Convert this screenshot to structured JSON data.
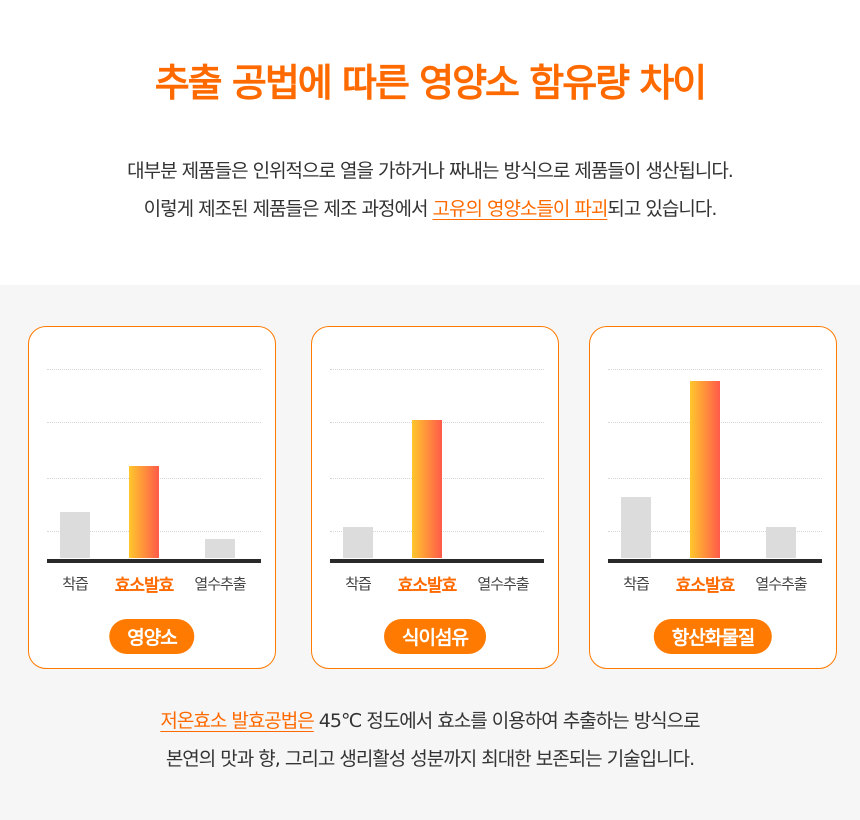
{
  "title": "추출 공법에 따른 영양소 함유량 차이",
  "intro": {
    "line1": "대부분 제품들은 인위적으로 열을 가하거나 짜내는 방식으로 제품들이 생산됩니다.",
    "line2_pre": "이렇게 제조된 제품들은 제조 과정에서 ",
    "line2_hl": "고유의 영양소들이 파괴",
    "line2_post": "되고 있습니다."
  },
  "colors": {
    "accent": "#ff6a00",
    "bar_gray": "#dcdcdc",
    "gradient_start": "#ffc72c",
    "gradient_end": "#ff5a4a"
  },
  "chart_data": [
    {
      "type": "bar",
      "title": "영양소",
      "categories": [
        "착즙",
        "효소발효",
        "열수추출"
      ],
      "values": [
        24,
        48,
        10
      ],
      "ylim": [
        0,
        100
      ]
    },
    {
      "type": "bar",
      "title": "식이섬유",
      "categories": [
        "착즙",
        "효소발효",
        "열수추출"
      ],
      "values": [
        16,
        72,
        0
      ],
      "ylim": [
        0,
        100
      ]
    },
    {
      "type": "bar",
      "title": "항산화물질",
      "categories": [
        "착즙",
        "효소발효",
        "열수추출"
      ],
      "values": [
        32,
        92,
        16
      ],
      "ylim": [
        0,
        100
      ]
    }
  ],
  "bottom": {
    "hl": "저온효소 발효공법은",
    "line1_post": " 45℃ 정도에서 효소를 이용하여 추출하는 방식으로",
    "line2": "본연의 맛과 향, 그리고 생리활성 성분까지 최대한 보존되는 기술입니다."
  }
}
